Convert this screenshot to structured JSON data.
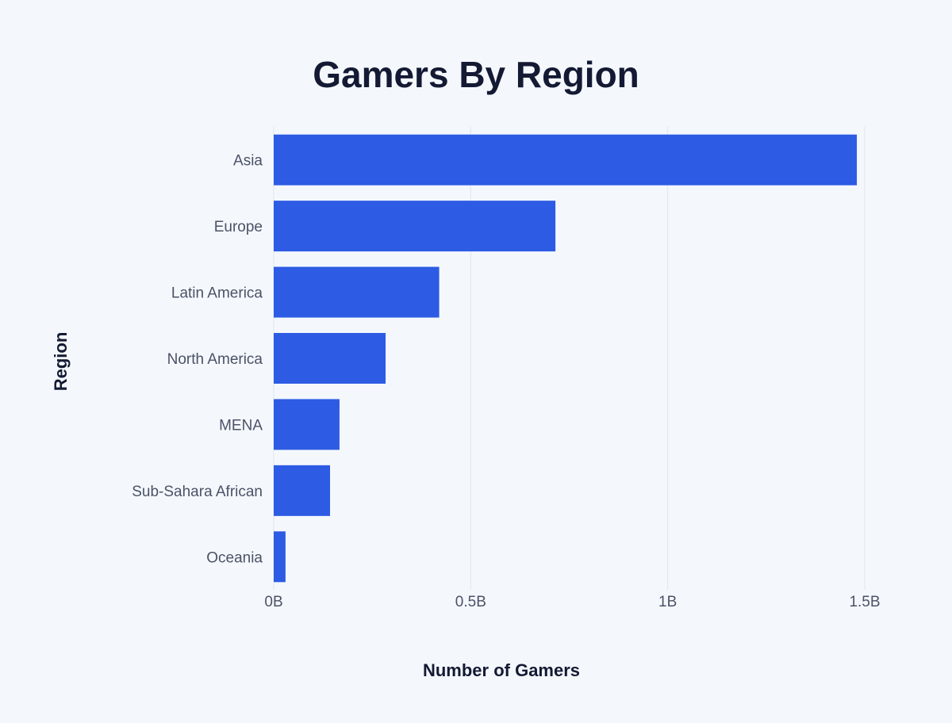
{
  "chart_data": {
    "type": "bar",
    "orientation": "horizontal",
    "title": "Gamers By Region",
    "xlabel": "Number of Gamers",
    "ylabel": "Region",
    "categories": [
      "Asia",
      "Europe",
      "Latin America",
      "North America",
      "MENA",
      "Sub-Sahara African",
      "Oceania"
    ],
    "values": [
      1.48,
      0.715,
      0.42,
      0.284,
      0.167,
      0.143,
      0.03
    ],
    "unit": "B",
    "xlim": [
      0,
      1.5
    ],
    "xticks": [
      0,
      0.5,
      1,
      1.5
    ],
    "xtick_labels": [
      "0B",
      "0.5B",
      "1B",
      "1.5B"
    ],
    "grid": "vertical",
    "bar_color": "#2d5be3"
  }
}
